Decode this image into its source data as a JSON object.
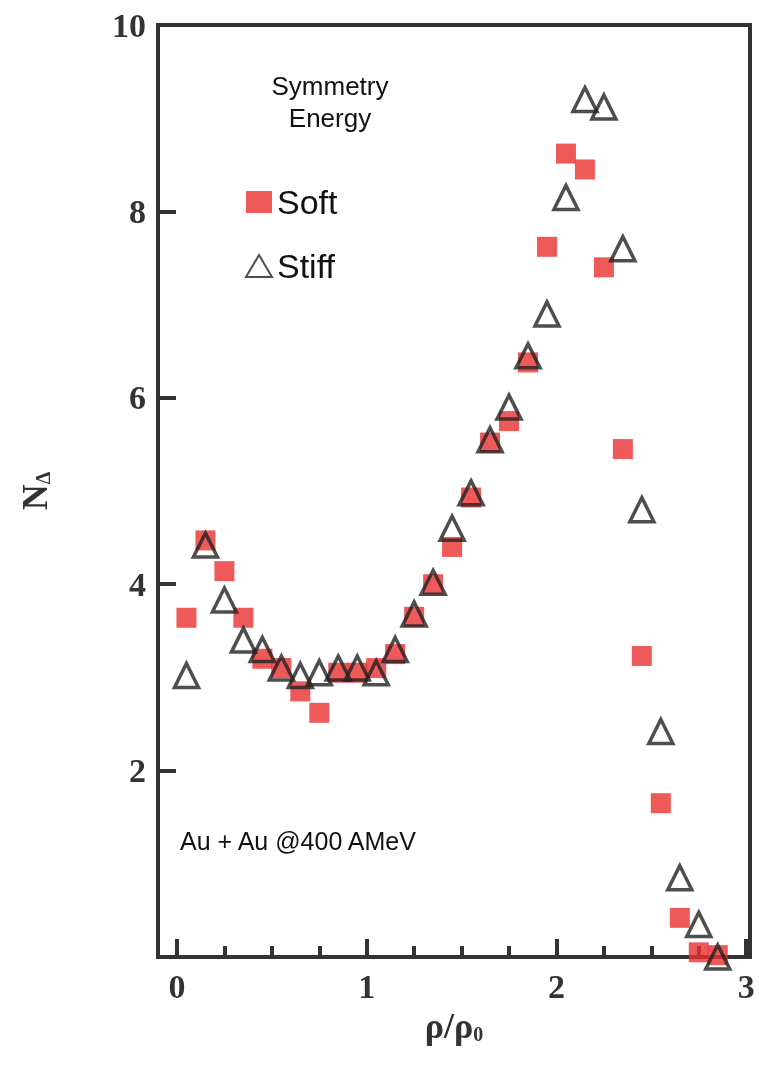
{
  "chart_data": {
    "type": "scatter",
    "xlabel": "ρ/ρ$_{0}$",
    "ylabel": "N$_{Δ}$",
    "legend_title": "Symmetry Energy",
    "annotations": [
      "Au + Au @400 AMeV"
    ],
    "x": [
      0.05,
      0.15,
      0.25,
      0.35,
      0.45,
      0.55,
      0.65,
      0.75,
      0.85,
      0.95,
      1.05,
      1.15,
      1.25,
      1.35,
      1.45,
      1.55,
      1.65,
      1.75,
      1.85,
      1.95,
      2.05,
      2.15,
      2.25,
      2.35,
      2.45,
      2.55,
      2.65,
      2.75,
      2.85
    ],
    "series": [
      {
        "name": "Soft",
        "color": "#e8312f",
        "marker": "square",
        "values": [
          3.64,
          4.47,
          4.14,
          3.64,
          3.2,
          3.1,
          2.85,
          2.62,
          3.05,
          3.05,
          3.1,
          3.25,
          3.65,
          4.0,
          4.4,
          4.93,
          5.52,
          5.75,
          6.38,
          7.62,
          8.62,
          8.45,
          7.4,
          5.45,
          3.23,
          1.65,
          0.42,
          0.05,
          0.02
        ]
      },
      {
        "name": "Stiff",
        "color": "#222222",
        "marker": "triangle",
        "values": [
          3.02,
          4.42,
          3.83,
          3.4,
          3.3,
          3.1,
          3.02,
          3.05,
          3.1,
          3.1,
          3.05,
          3.3,
          3.68,
          4.02,
          4.6,
          4.98,
          5.55,
          5.9,
          6.45,
          6.9,
          8.15,
          9.2,
          9.12,
          7.6,
          4.8,
          2.42,
          0.85,
          0.35,
          0.0
        ]
      }
    ],
    "xlim": [
      -0.1,
      3.02
    ],
    "ylim": [
      0,
      10
    ],
    "xticks": [
      0,
      {
        "value": 0.25,
        "label": null
      },
      {
        "value": 0.5,
        "label": null
      },
      {
        "value": 0.75,
        "label": null
      },
      1,
      {
        "value": 1.25,
        "label": null
      },
      {
        "value": 1.5,
        "label": null
      },
      {
        "value": 1.75,
        "label": null
      },
      2,
      {
        "value": 2.25,
        "label": null
      },
      {
        "value": 2.5,
        "label": null
      },
      {
        "value": 2.75,
        "label": null
      },
      3
    ],
    "yticks": [
      2,
      4,
      6,
      8,
      10
    ],
    "legend": "top left",
    "grid": false
  }
}
